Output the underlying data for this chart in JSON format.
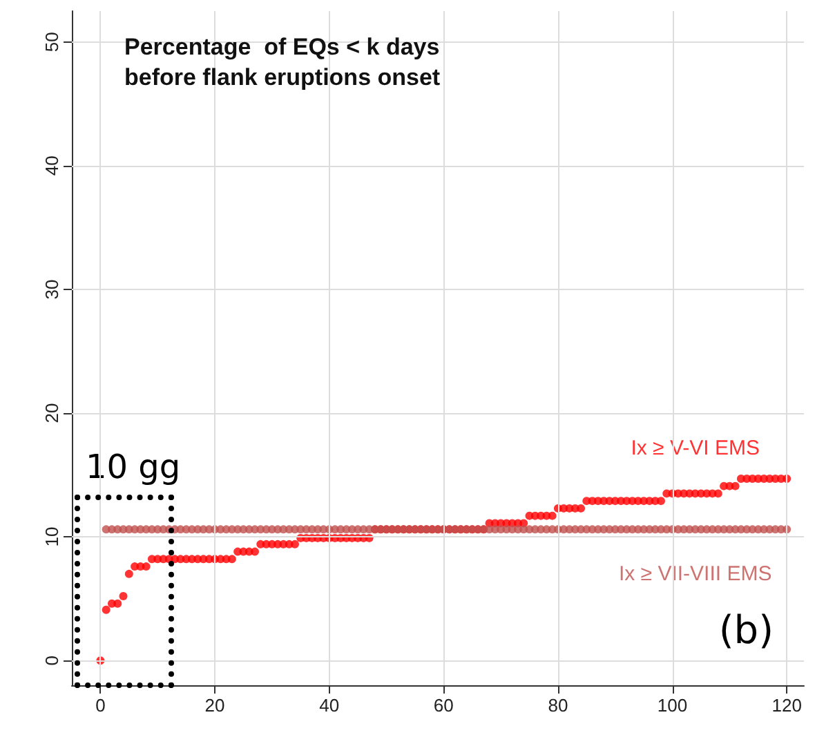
{
  "chart_data": {
    "type": "scatter",
    "title": "Percentage  of EQs < k days\nbefore flank eruptions onset",
    "x": [
      0,
      1,
      2,
      3,
      4,
      5,
      6,
      7,
      8,
      9,
      10,
      11,
      12,
      13,
      14,
      15,
      16,
      17,
      18,
      19,
      20,
      21,
      22,
      23,
      24,
      25,
      26,
      27,
      28,
      29,
      30,
      31,
      32,
      33,
      34,
      35,
      36,
      37,
      38,
      39,
      40,
      41,
      42,
      43,
      44,
      45,
      46,
      47,
      48,
      49,
      50,
      51,
      52,
      53,
      54,
      55,
      56,
      57,
      58,
      59,
      60,
      61,
      62,
      63,
      64,
      65,
      66,
      67,
      68,
      69,
      70,
      71,
      72,
      73,
      74,
      75,
      76,
      77,
      78,
      79,
      80,
      81,
      82,
      83,
      84,
      85,
      86,
      87,
      88,
      89,
      90,
      91,
      92,
      93,
      94,
      95,
      96,
      97,
      98,
      99,
      100,
      101,
      102,
      103,
      104,
      105,
      106,
      107,
      108,
      109,
      110,
      111,
      112,
      113,
      114,
      115,
      116,
      117,
      118,
      119,
      120
    ],
    "series": [
      {
        "name": "Ix ≥ V-VI EMS",
        "color": "#ff0000",
        "values": [
          0,
          4.1,
          4.6,
          4.6,
          5.2,
          7.0,
          7.6,
          7.6,
          7.6,
          8.2,
          8.2,
          8.2,
          8.2,
          8.2,
          8.2,
          8.2,
          8.2,
          8.2,
          8.2,
          8.2,
          8.2,
          8.2,
          8.2,
          8.2,
          8.8,
          8.8,
          8.8,
          8.8,
          9.4,
          9.4,
          9.4,
          9.4,
          9.4,
          9.4,
          9.4,
          9.9,
          9.9,
          9.9,
          9.9,
          9.9,
          9.9,
          9.9,
          9.9,
          9.9,
          9.9,
          9.9,
          9.9,
          9.9,
          10.6,
          10.6,
          10.6,
          10.6,
          10.6,
          10.6,
          10.6,
          10.6,
          10.6,
          10.6,
          10.6,
          10.6,
          10.6,
          10.6,
          10.6,
          10.6,
          10.6,
          10.6,
          10.6,
          10.6,
          11.1,
          11.1,
          11.1,
          11.1,
          11.1,
          11.1,
          11.1,
          11.7,
          11.7,
          11.7,
          11.7,
          11.7,
          12.3,
          12.3,
          12.3,
          12.3,
          12.3,
          12.9,
          12.9,
          12.9,
          12.9,
          12.9,
          12.9,
          12.9,
          12.9,
          12.9,
          12.9,
          12.9,
          12.9,
          12.9,
          12.9,
          13.5,
          13.5,
          13.5,
          13.5,
          13.5,
          13.5,
          13.5,
          13.5,
          13.5,
          13.5,
          14.1,
          14.1,
          14.1,
          14.7,
          14.7,
          14.7,
          14.7,
          14.7,
          14.7,
          14.7,
          14.7,
          14.7
        ]
      },
      {
        "name": "Ix ≥ VII-VIII EMS",
        "color": "#c0504d",
        "values": [
          null,
          10.6,
          10.6,
          10.6,
          10.6,
          10.6,
          10.6,
          10.6,
          10.6,
          10.6,
          10.6,
          10.6,
          10.6,
          10.6,
          10.6,
          10.6,
          10.6,
          10.6,
          10.6,
          10.6,
          10.6,
          10.6,
          10.6,
          10.6,
          10.6,
          10.6,
          10.6,
          10.6,
          10.6,
          10.6,
          10.6,
          10.6,
          10.6,
          10.6,
          10.6,
          10.6,
          10.6,
          10.6,
          10.6,
          10.6,
          10.6,
          10.6,
          10.6,
          10.6,
          10.6,
          10.6,
          10.6,
          10.6,
          10.6,
          10.6,
          10.6,
          10.6,
          10.6,
          10.6,
          10.6,
          10.6,
          10.6,
          10.6,
          10.6,
          10.6,
          10.6,
          10.6,
          10.6,
          10.6,
          10.6,
          10.6,
          10.6,
          10.6,
          10.6,
          10.6,
          10.6,
          10.6,
          10.6,
          10.6,
          10.6,
          10.6,
          10.6,
          10.6,
          10.6,
          10.6,
          10.6,
          10.6,
          10.6,
          10.6,
          10.6,
          10.6,
          10.6,
          10.6,
          10.6,
          10.6,
          10.6,
          10.6,
          10.6,
          10.6,
          10.6,
          10.6,
          10.6,
          10.6,
          10.6,
          10.6,
          10.6,
          10.6,
          10.6,
          10.6,
          10.6,
          10.6,
          10.6,
          10.6,
          10.6,
          10.6,
          10.6,
          10.6,
          10.6,
          10.6,
          10.6,
          10.6,
          10.6,
          10.6,
          10.6,
          10.6,
          10.6
        ]
      }
    ],
    "xlim": [
      -5,
      123
    ],
    "xticks": [
      0,
      20,
      40,
      60,
      80,
      100,
      120
    ],
    "ylim": [
      -2,
      52.5
    ],
    "yticks": [
      0,
      10,
      20,
      30,
      40,
      50
    ],
    "grid": true,
    "marker": "circle",
    "legend": false,
    "annotations": [
      "(b)",
      "10 gg"
    ]
  }
}
